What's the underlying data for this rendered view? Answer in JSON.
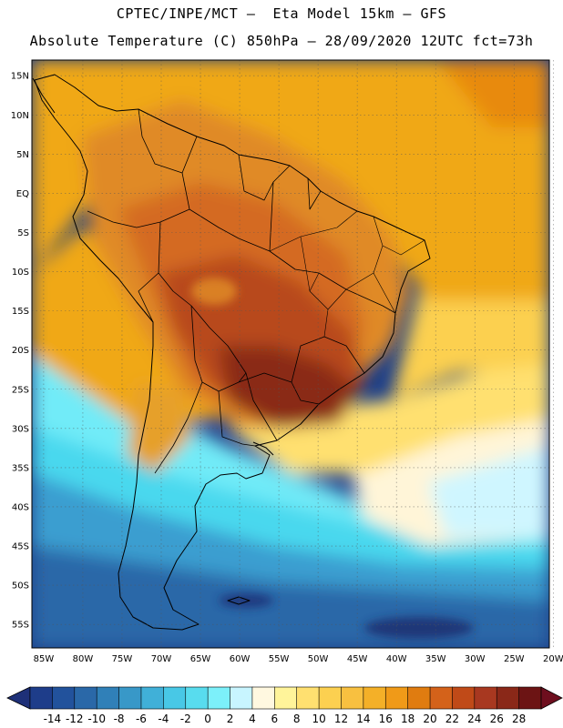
{
  "header": {
    "line1": "CPTEC/INPE/MCT –  Eta Model 15km – GFS",
    "line2": "Absolute Temperature (C) 850hPa – 28/09/2020 12UTC fct=73h"
  },
  "map": {
    "lat_labels": [
      "15N",
      "10N",
      "5N",
      "EQ",
      "5S",
      "10S",
      "15S",
      "20S",
      "25S",
      "30S",
      "35S",
      "40S",
      "45S",
      "50S",
      "55S"
    ],
    "lat_values": [
      15,
      10,
      5,
      0,
      -5,
      -10,
      -15,
      -20,
      -25,
      -30,
      -35,
      -40,
      -45,
      -50,
      -55
    ],
    "lon_labels": [
      "85W",
      "80W",
      "75W",
      "70W",
      "65W",
      "60W",
      "55W",
      "50W",
      "45W",
      "40W",
      "35W",
      "30W",
      "25W",
      "20W"
    ],
    "lon_values": [
      -85,
      -80,
      -75,
      -70,
      -65,
      -60,
      -55,
      -50,
      -45,
      -40,
      -35,
      -30,
      -25,
      -20
    ],
    "extent": {
      "lon_min": -86.5,
      "lon_max": -20.5,
      "lat_min": -58,
      "lat_max": 17
    },
    "field_colors": {
      "ocean_north": "#f0a818",
      "ocean_north_warm": "#e88a10",
      "continent_tropical": "#e08a28",
      "continent_hot": "#d46a24",
      "continent_very_hot": "#b84a1e",
      "core_max": "#8a2c18",
      "andes_mid": "#e6a02a",
      "subtropical_yellow": "#ffe070",
      "pale": "#fff5d8",
      "cyan_light": "#cff6ff",
      "cyan": "#48d8ee",
      "blue_mid": "#3a9ed0",
      "blue_dark": "#2a68a8",
      "navy": "#1e3f88",
      "border": "#000000"
    }
  },
  "colorbar": {
    "labels": [
      "-14",
      "-12",
      "-10",
      "-8",
      "-6",
      "-4",
      "-2",
      "0",
      "2",
      "4",
      "6",
      "8",
      "10",
      "12",
      "14",
      "16",
      "18",
      "20",
      "22",
      "24",
      "26",
      "28"
    ],
    "colors": [
      "#1e3d8a",
      "#22529c",
      "#2a68a8",
      "#3080b8",
      "#3898c8",
      "#40b0d8",
      "#48c8e6",
      "#58dcee",
      "#7cf0fa",
      "#c8f5ff",
      "#fff8e0",
      "#fff49a",
      "#ffe070",
      "#fcd050",
      "#f8c040",
      "#f4b028",
      "#f09a18",
      "#e07c10",
      "#d4621a",
      "#c04a18",
      "#a83820",
      "#8a2818",
      "#6c1414"
    ],
    "under_color": "#1e3078",
    "over_color": "#6e0e1e"
  }
}
